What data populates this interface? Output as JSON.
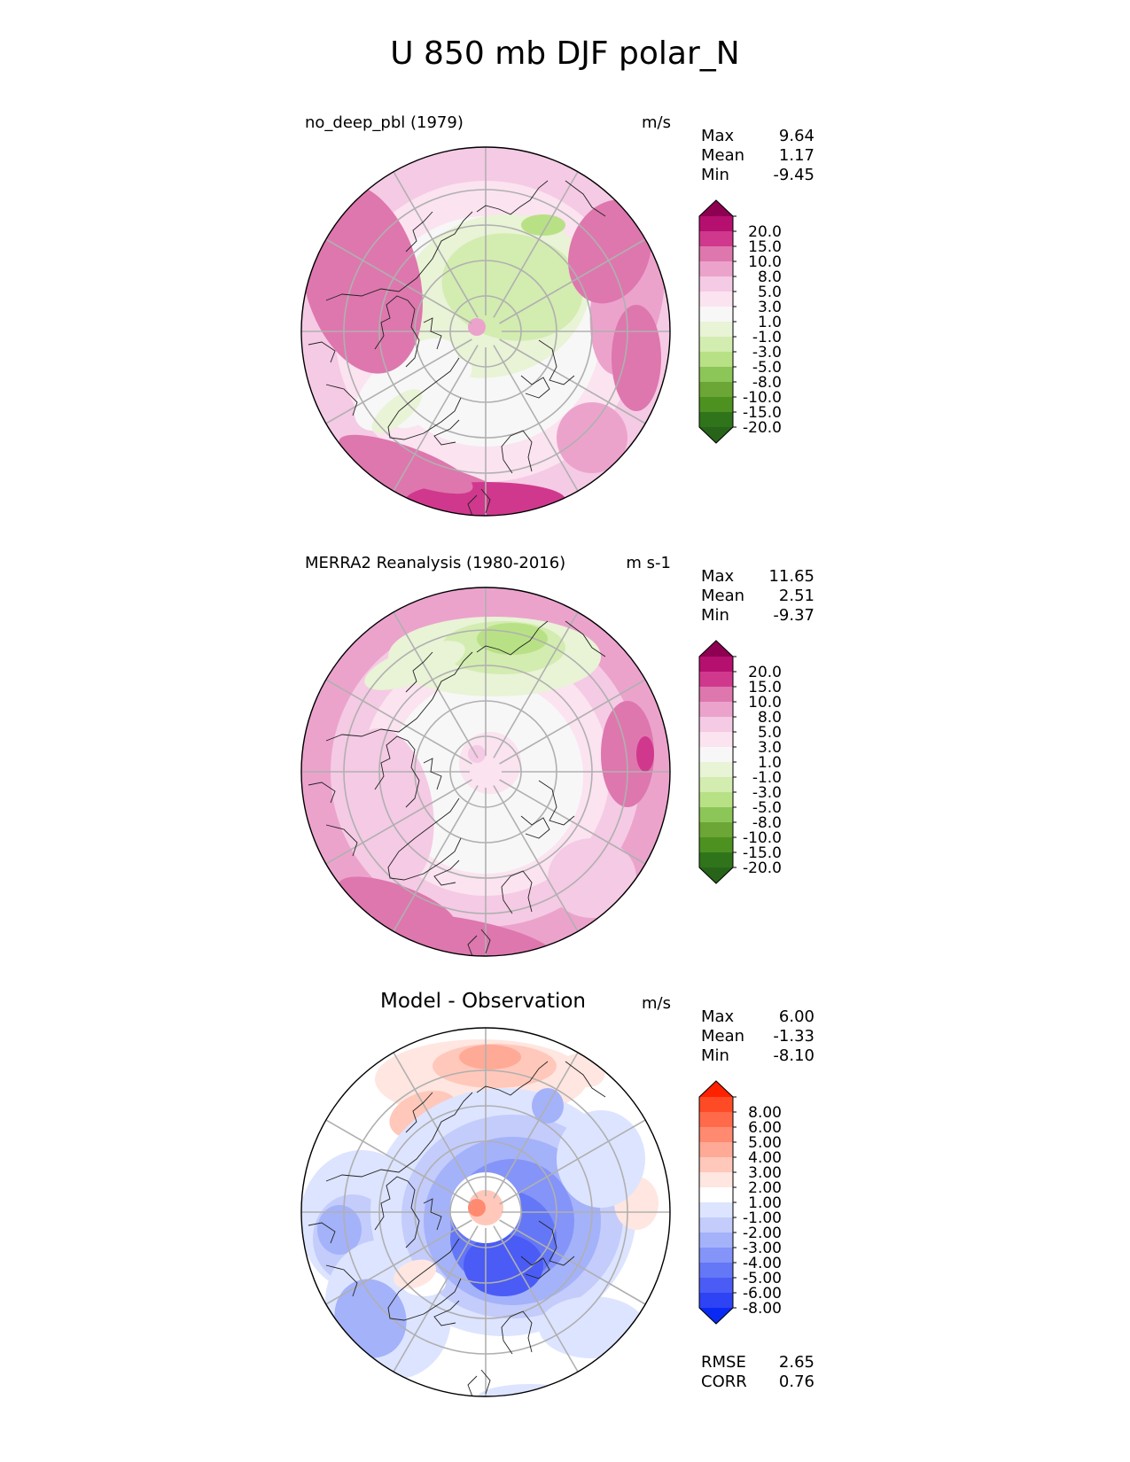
{
  "figure_title": "U 850 mb DJF polar_N",
  "chart_data": [
    {
      "type": "heatmap",
      "projection": "north-polar-stereographic",
      "title": "no_deep_pbl (1979)",
      "units": "m/s",
      "stats": {
        "max": "9.64",
        "mean": "1.17",
        "min": "-9.45"
      },
      "stat_labels": {
        "max": "Max",
        "mean": "Mean",
        "min": "Min"
      },
      "colorbar": {
        "levels": [
          "20.0",
          "15.0",
          "10.0",
          "8.0",
          "5.0",
          "3.0",
          "1.0",
          "-1.0",
          "-3.0",
          "-5.0",
          "-8.0",
          "-10.0",
          "-15.0",
          "-20.0"
        ],
        "colors": [
          "#8e0152",
          "#b5106f",
          "#d0388d",
          "#de77ae",
          "#eba3cc",
          "#f5cae4",
          "#fbe3f0",
          "#f7f7f7",
          "#e9f3d6",
          "#d3ecb0",
          "#b8e186",
          "#8cc558",
          "#6ba636",
          "#4d9221",
          "#2f741a",
          "#276419"
        ],
        "extend": "both"
      }
    },
    {
      "type": "heatmap",
      "projection": "north-polar-stereographic",
      "title": "MERRA2 Reanalysis (1980-2016)",
      "units": "m s-1",
      "stats": {
        "max": "11.65",
        "mean": "2.51",
        "min": "-9.37"
      },
      "stat_labels": {
        "max": "Max",
        "mean": "Mean",
        "min": "Min"
      },
      "colorbar": {
        "levels": [
          "20.0",
          "15.0",
          "10.0",
          "8.0",
          "5.0",
          "3.0",
          "1.0",
          "-1.0",
          "-3.0",
          "-5.0",
          "-8.0",
          "-10.0",
          "-15.0",
          "-20.0"
        ],
        "colors": [
          "#8e0152",
          "#b5106f",
          "#d0388d",
          "#de77ae",
          "#eba3cc",
          "#f5cae4",
          "#fbe3f0",
          "#f7f7f7",
          "#e9f3d6",
          "#d3ecb0",
          "#b8e186",
          "#8cc558",
          "#6ba636",
          "#4d9221",
          "#2f741a",
          "#276419"
        ],
        "extend": "both"
      }
    },
    {
      "type": "heatmap",
      "projection": "north-polar-stereographic",
      "title": "Model - Observation",
      "units": "m/s",
      "stats": {
        "max": "6.00",
        "mean": "-1.33",
        "min": "-8.10"
      },
      "stat_labels": {
        "max": "Max",
        "mean": "Mean",
        "min": "Min"
      },
      "metrics": {
        "rmse_label": "RMSE",
        "rmse": "2.65",
        "corr_label": "CORR",
        "corr": "0.76"
      },
      "colorbar": {
        "levels": [
          "8.00",
          "6.00",
          "5.00",
          "4.00",
          "3.00",
          "2.00",
          "1.00",
          "-1.00",
          "-2.00",
          "-3.00",
          "-4.00",
          "-5.00",
          "-6.00",
          "-8.00"
        ],
        "colors": [
          "#ff2200",
          "#ff4a26",
          "#ff6a4a",
          "#ff8a70",
          "#ffaa96",
          "#ffc8bb",
          "#ffe6e0",
          "#ffffff",
          "#dde4ff",
          "#c3ccfb",
          "#a4b2fa",
          "#8494f8",
          "#6477f6",
          "#4a5cf5",
          "#2d43f4",
          "#0a2af4"
        ],
        "extend": "both"
      }
    }
  ]
}
